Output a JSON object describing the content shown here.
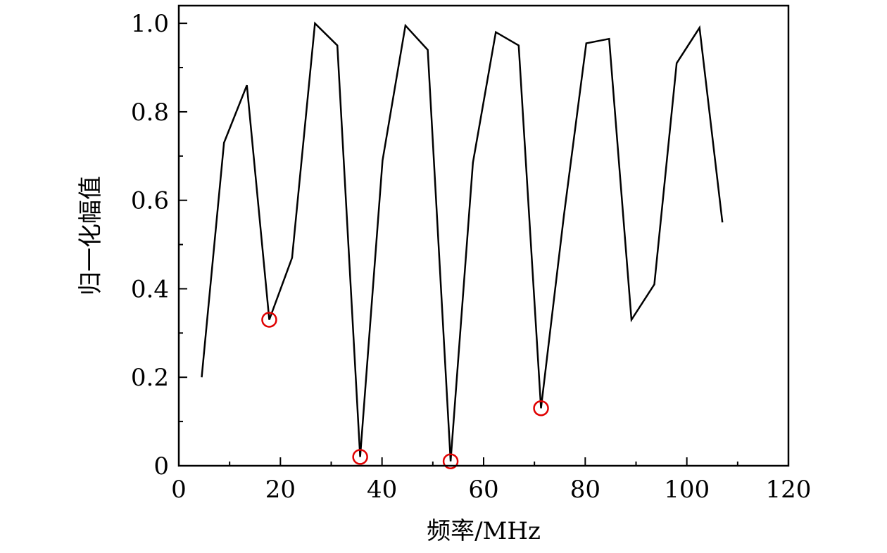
{
  "chart_data": {
    "type": "line",
    "title": "",
    "xlabel": "频率/MHz",
    "ylabel": "归一化幅值",
    "xlim": [
      0,
      120
    ],
    "ylim": [
      0,
      1.04
    ],
    "x_ticks": [
      0,
      20,
      40,
      60,
      80,
      100,
      120
    ],
    "x_tick_labels": [
      "0",
      "20",
      "40",
      "60",
      "80",
      "100",
      "120"
    ],
    "y_ticks": [
      0,
      0.2,
      0.4,
      0.6,
      0.8,
      1.0
    ],
    "y_tick_labels": [
      "0",
      "0.2",
      "0.4",
      "0.6",
      "0.8",
      "1.0"
    ],
    "grid": false,
    "legend": "none",
    "line_color": "#000000",
    "marker_color": "#e00000",
    "series": [
      {
        "x": [
          4.5,
          8.9,
          13.4,
          17.8,
          22.3,
          26.8,
          31.2,
          35.7,
          40.1,
          44.6,
          49.0,
          53.5,
          57.9,
          62.4,
          66.9,
          71.3,
          75.8,
          80.2,
          84.7,
          89.1,
          93.6,
          98.0,
          102.5,
          107.0
        ],
        "y": [
          0.2,
          0.73,
          0.86,
          0.33,
          0.47,
          1.0,
          0.95,
          0.02,
          0.69,
          0.995,
          0.94,
          0.01,
          0.685,
          0.98,
          0.95,
          0.13,
          0.565,
          0.955,
          0.965,
          0.33,
          0.41,
          0.91,
          0.99,
          0.55
        ]
      }
    ],
    "highlighted_points": [
      {
        "x": 17.8,
        "y": 0.33
      },
      {
        "x": 35.7,
        "y": 0.02
      },
      {
        "x": 53.5,
        "y": 0.01
      },
      {
        "x": 71.3,
        "y": 0.13
      }
    ]
  }
}
